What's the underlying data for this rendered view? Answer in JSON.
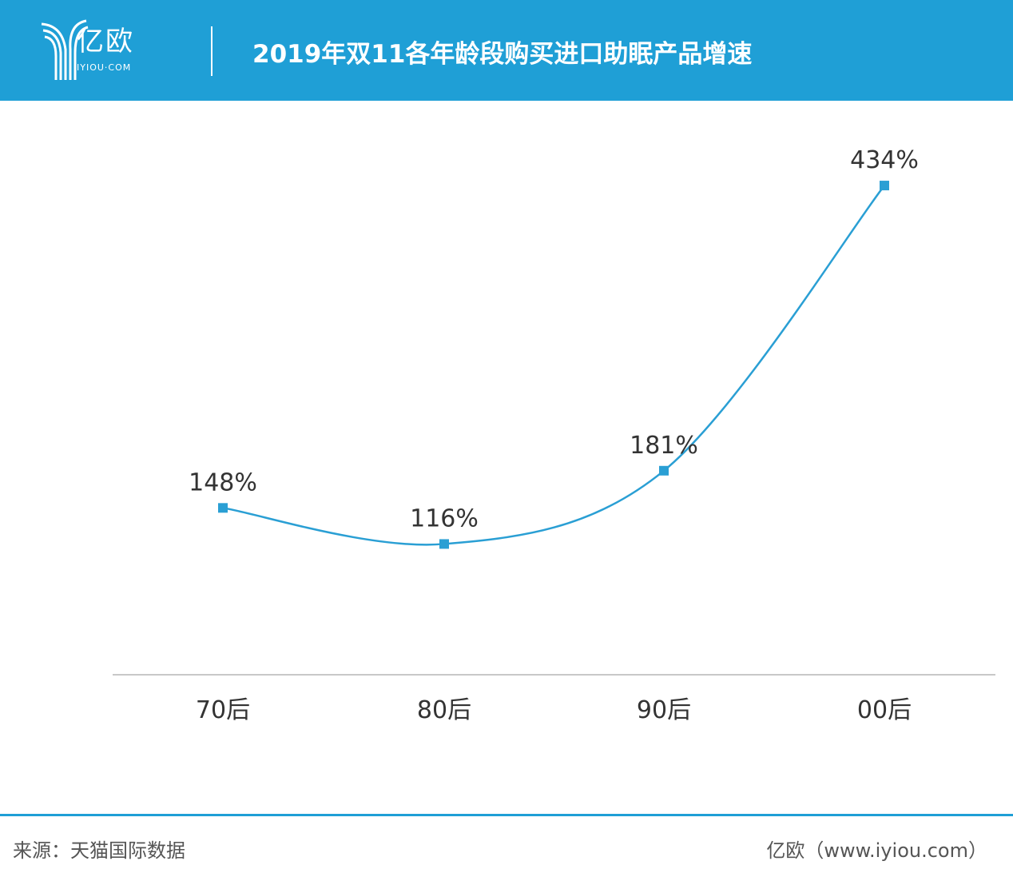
{
  "header": {
    "logo_text": "亿欧",
    "logo_sub": "IYIOU·COM",
    "title": "2019年双11各年龄段购买进口助眠产品增速"
  },
  "colors": {
    "header": "#1f9fd6",
    "line": "#2a9fd4",
    "axis": "#c8c8c8"
  },
  "chart_data": {
    "type": "line",
    "title": "2019年双11各年龄段购买进口助眠产品增速",
    "categories": [
      "70后",
      "80后",
      "90后",
      "00后"
    ],
    "values": [
      148,
      116,
      181,
      434
    ],
    "labels": [
      "148%",
      "116%",
      "181%",
      "434%"
    ],
    "unit": "%",
    "smooth": true,
    "marker": "square",
    "grid": false,
    "ylim": [
      0,
      450
    ]
  },
  "footer": {
    "source": "来源：天猫国际数据",
    "credit": "亿欧（www.iyiou.com）"
  }
}
